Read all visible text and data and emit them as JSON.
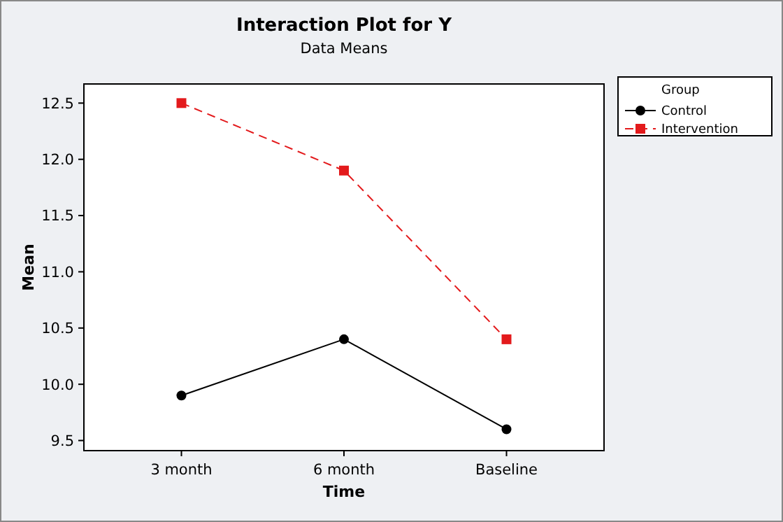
{
  "chart_data": {
    "type": "line",
    "title": "Interaction Plot for Y",
    "subtitle": "Data Means",
    "xlabel": "Time",
    "ylabel": "Mean",
    "legend_title": "Group",
    "legend": "right",
    "grid": false,
    "categories": [
      "3 month",
      "6 month",
      "Baseline"
    ],
    "series": [
      {
        "name": "Control",
        "color": "#000000",
        "values": [
          9.9,
          10.4,
          9.6
        ],
        "marker": "circle",
        "line_style": "solid"
      },
      {
        "name": "Intervention",
        "color": "#e31a1c",
        "values": [
          12.5,
          11.9,
          10.4
        ],
        "marker": "square",
        "line_style": "dashed"
      }
    ],
    "ylim": [
      9.41,
      12.67
    ],
    "yticks": [
      {
        "value": 9.5,
        "label": "9.5"
      },
      {
        "value": 10,
        "label": "10.0"
      },
      {
        "value": 10.5,
        "label": "10.5"
      },
      {
        "value": 11,
        "label": "11.0"
      },
      {
        "value": 11.5,
        "label": "11.5"
      },
      {
        "value": 12,
        "label": "12.0"
      },
      {
        "value": 12.5,
        "label": "12.5"
      }
    ]
  }
}
